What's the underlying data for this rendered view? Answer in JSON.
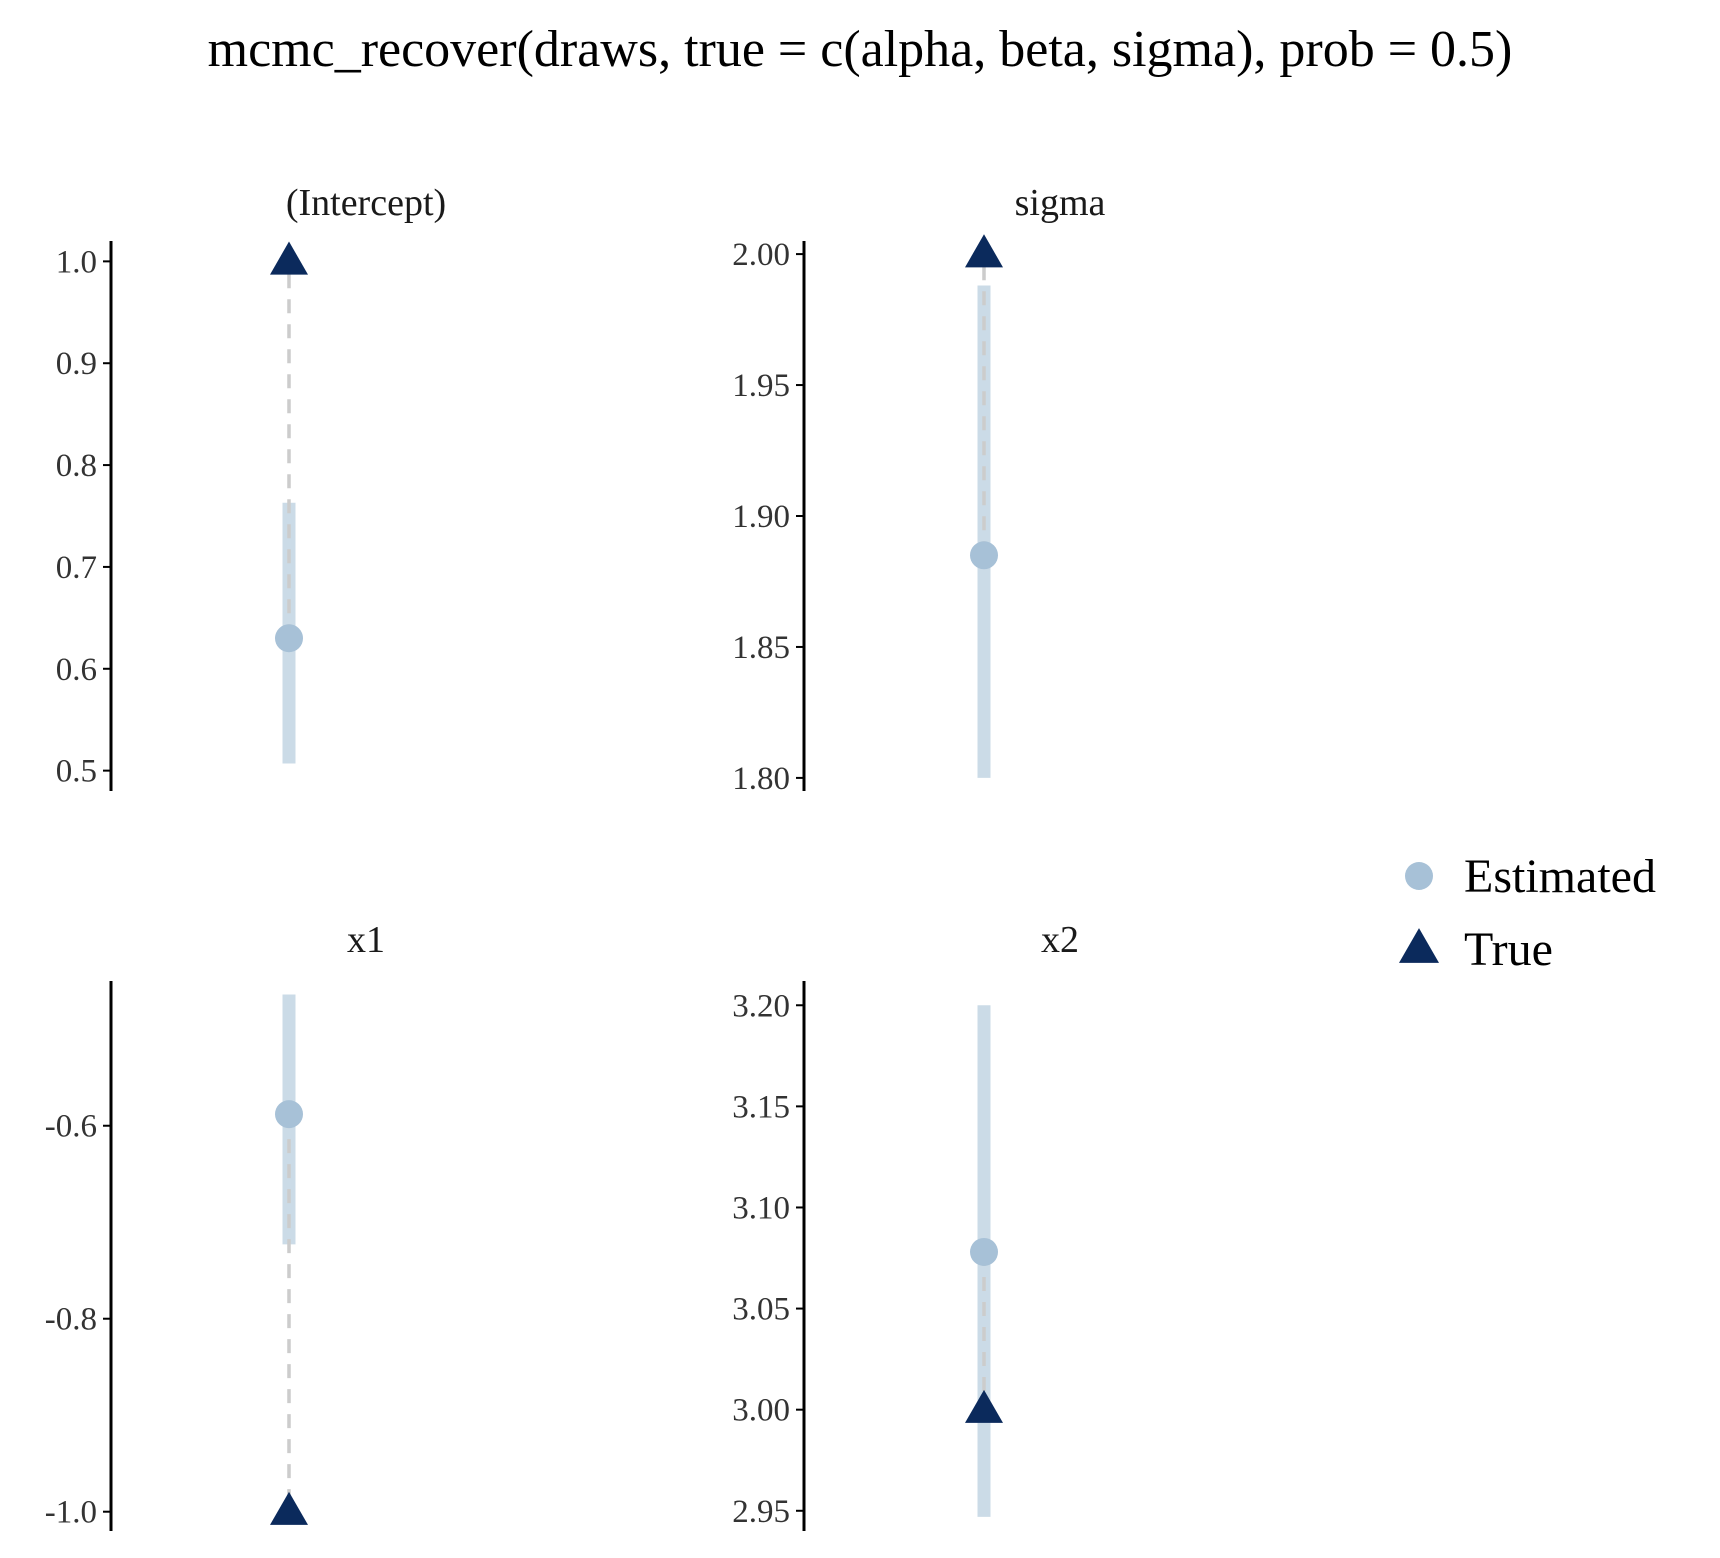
{
  "title": "mcmc_recover(draws, true = c(alpha, beta, sigma), prob = 0.5)",
  "colors": {
    "estimated_point": "#a7c1d7",
    "estimated_interval": "#cbdbe7",
    "true_marker": "#0b2a5c",
    "reference_line": "#cccccc",
    "axis": "#000000"
  },
  "legend": {
    "position": "right",
    "items": [
      {
        "label": "Estimated",
        "shape": "circle"
      },
      {
        "label": "True",
        "shape": "triangle"
      }
    ]
  },
  "chart_data": [
    {
      "type": "pointrange",
      "panel": "(Intercept)",
      "ylim": [
        0.48,
        1.02
      ],
      "y_ticks": [
        0.5,
        0.6,
        0.7,
        0.8,
        0.9,
        1.0
      ],
      "y_tick_labels": [
        "0.5",
        "0.6",
        "0.7",
        "0.8",
        "0.9",
        "1.0"
      ],
      "estimated": 0.63,
      "interval": [
        0.507,
        0.763
      ],
      "true": 1.0,
      "grid": false
    },
    {
      "type": "pointrange",
      "panel": "sigma",
      "ylim": [
        1.795,
        2.005
      ],
      "y_ticks": [
        1.8,
        1.85,
        1.9,
        1.95,
        2.0
      ],
      "y_tick_labels": [
        "1.80",
        "1.85",
        "1.90",
        "1.95",
        "2.00"
      ],
      "estimated": 1.885,
      "interval": [
        1.8,
        1.988
      ],
      "true": 2.0,
      "grid": false
    },
    {
      "type": "pointrange",
      "panel": "x1",
      "ylim": [
        -1.02,
        -0.45
      ],
      "y_ticks": [
        -1.0,
        -0.8,
        -0.6
      ],
      "y_tick_labels": [
        "-1.0",
        "-0.8",
        "-0.6"
      ],
      "estimated": -0.588,
      "interval": [
        -0.723,
        -0.464
      ],
      "true": -1.0,
      "grid": false
    },
    {
      "type": "pointrange",
      "panel": "x2",
      "ylim": [
        2.94,
        3.212
      ],
      "y_ticks": [
        2.95,
        3.0,
        3.05,
        3.1,
        3.15,
        3.2
      ],
      "y_tick_labels": [
        "2.95",
        "3.00",
        "3.05",
        "3.10",
        "3.15",
        "3.20"
      ],
      "estimated": 3.078,
      "interval": [
        2.947,
        3.2
      ],
      "true": 3.0,
      "grid": false
    }
  ]
}
